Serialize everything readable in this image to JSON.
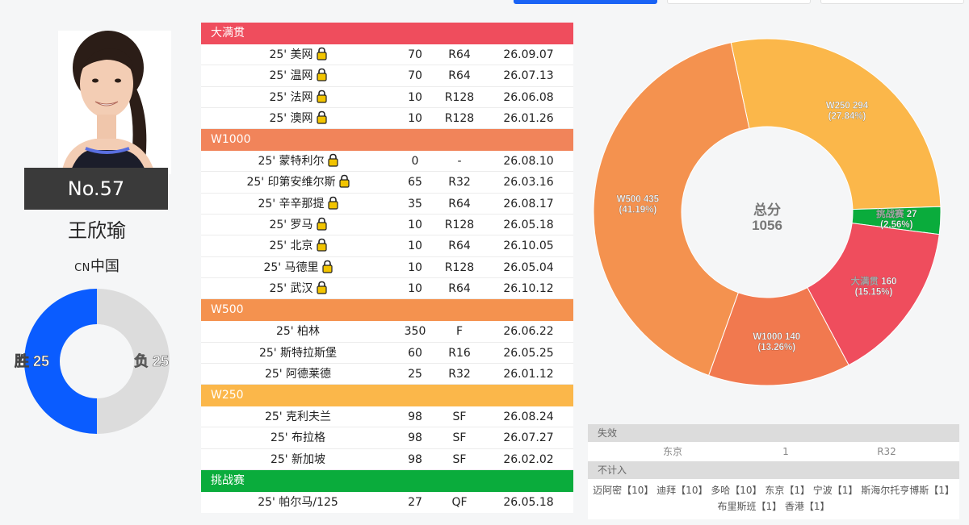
{
  "player": {
    "rank_label": "No.57",
    "name": "王欣瑜",
    "country_code": "CN",
    "country_name": "中国"
  },
  "win_loss": {
    "win_label": "胜 25",
    "loss_label": "负 25",
    "wins": 25,
    "losses": 25,
    "win_color": "#0a5cff",
    "loss_color": "#dcdcdc"
  },
  "results": {
    "lock_icon": "lock-icon",
    "categories": [
      {
        "name": "大满贯",
        "color": "#ef4d5d",
        "rows": [
          {
            "event": "25' 美网",
            "points": "70",
            "round": "R64",
            "date": "26.09.07"
          },
          {
            "event": "25' 温网",
            "points": "70",
            "round": "R64",
            "date": "26.07.13"
          },
          {
            "event": "25' 法网",
            "points": "10",
            "round": "R128",
            "date": "26.06.08"
          },
          {
            "event": "25' 澳网",
            "points": "10",
            "round": "R128",
            "date": "26.01.26"
          }
        ]
      },
      {
        "name": "W1000",
        "color": "#f1845a",
        "rows": [
          {
            "event": "25' 蒙特利尔",
            "points": "0",
            "round": "-",
            "date": "26.08.10"
          },
          {
            "event": "25' 印第安维尔斯",
            "points": "65",
            "round": "R32",
            "date": "26.03.16"
          },
          {
            "event": "25' 辛辛那提",
            "points": "35",
            "round": "R64",
            "date": "26.08.17"
          },
          {
            "event": "25' 罗马",
            "points": "10",
            "round": "R128",
            "date": "26.05.18"
          },
          {
            "event": "25' 北京",
            "points": "10",
            "round": "R64",
            "date": "26.10.05"
          },
          {
            "event": "25' 马德里",
            "points": "10",
            "round": "R128",
            "date": "26.05.04"
          },
          {
            "event": "25' 武汉",
            "points": "10",
            "round": "R64",
            "date": "26.10.12"
          }
        ]
      },
      {
        "name": "W500",
        "color": "#f4924f",
        "rows": [
          {
            "event": "25' 柏林",
            "points": "350",
            "round": "F",
            "date": "26.06.22"
          },
          {
            "event": "25' 斯特拉斯堡",
            "points": "60",
            "round": "R16",
            "date": "26.05.25"
          },
          {
            "event": "25' 阿德莱德",
            "points": "25",
            "round": "R32",
            "date": "26.01.12"
          }
        ]
      },
      {
        "name": "W250",
        "color": "#fbb74a",
        "rows": [
          {
            "event": "25' 克利夫兰",
            "points": "98",
            "round": "SF",
            "date": "26.08.24"
          },
          {
            "event": "25' 布拉格",
            "points": "98",
            "round": "SF",
            "date": "26.07.27"
          },
          {
            "event": "25' 新加坡",
            "points": "98",
            "round": "SF",
            "date": "26.02.02"
          }
        ]
      },
      {
        "name": "挑战赛",
        "color": "#0aac3c",
        "rows": [
          {
            "event": "25' 帕尔马/125",
            "points": "27",
            "round": "QF",
            "date": "26.05.18"
          }
        ]
      }
    ]
  },
  "chart_data": {
    "type": "pie",
    "title": "",
    "center_label": "总分",
    "total": 1056,
    "slices": [
      {
        "name": "W250",
        "value": 294,
        "percent": "27.84%",
        "color": "#fbb74a"
      },
      {
        "name": "挑战赛",
        "value": 27,
        "percent": "2.56%",
        "color": "#0aac3c"
      },
      {
        "name": "大满贯",
        "value": 160,
        "percent": "15.15%",
        "color": "#ef4d5d"
      },
      {
        "name": "W1000",
        "value": 140,
        "percent": "13.26%",
        "color": "#f1794f"
      },
      {
        "name": "W500",
        "value": 435,
        "percent": "41.19%",
        "color": "#f4924f"
      }
    ]
  },
  "expired": {
    "title": "失效",
    "rows": [
      {
        "event": "东京",
        "points": "1",
        "round": "R32"
      }
    ]
  },
  "uncounted": {
    "title": "不计入",
    "text": "迈阿密【10】 迪拜【10】 多哈【10】 东京【1】 宁波【1】 斯海尔托亨博斯【1】 布里斯班【1】 香港【1】"
  }
}
